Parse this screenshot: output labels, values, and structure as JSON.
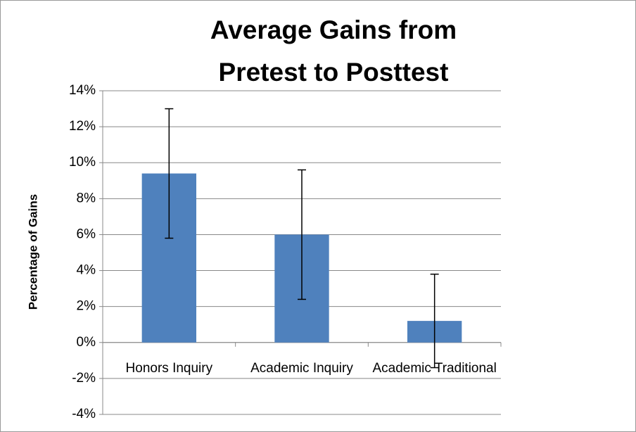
{
  "chart_data": {
    "type": "bar",
    "title": "Average Gains from Pretest to Posttest",
    "ylabel": "Percentage of Gains",
    "categories": [
      "Honors Inquiry",
      "Academic Inquiry",
      "Academic Traditional"
    ],
    "values": [
      9.4,
      6.0,
      1.2
    ],
    "errors": [
      3.6,
      3.6,
      2.6
    ],
    "color": "#4f81bd",
    "ylim": [
      -4,
      14
    ],
    "yticks": [
      {
        "value": -4,
        "label": "-4%"
      },
      {
        "value": -2,
        "label": "-2%"
      },
      {
        "value": 0,
        "label": "0%"
      },
      {
        "value": 2,
        "label": "2%"
      },
      {
        "value": 4,
        "label": "4%"
      },
      {
        "value": 6,
        "label": "6%"
      },
      {
        "value": 8,
        "label": "8%"
      },
      {
        "value": 10,
        "label": "10%"
      },
      {
        "value": 12,
        "label": "12%"
      },
      {
        "value": 14,
        "label": "14%"
      }
    ],
    "grid": true
  }
}
